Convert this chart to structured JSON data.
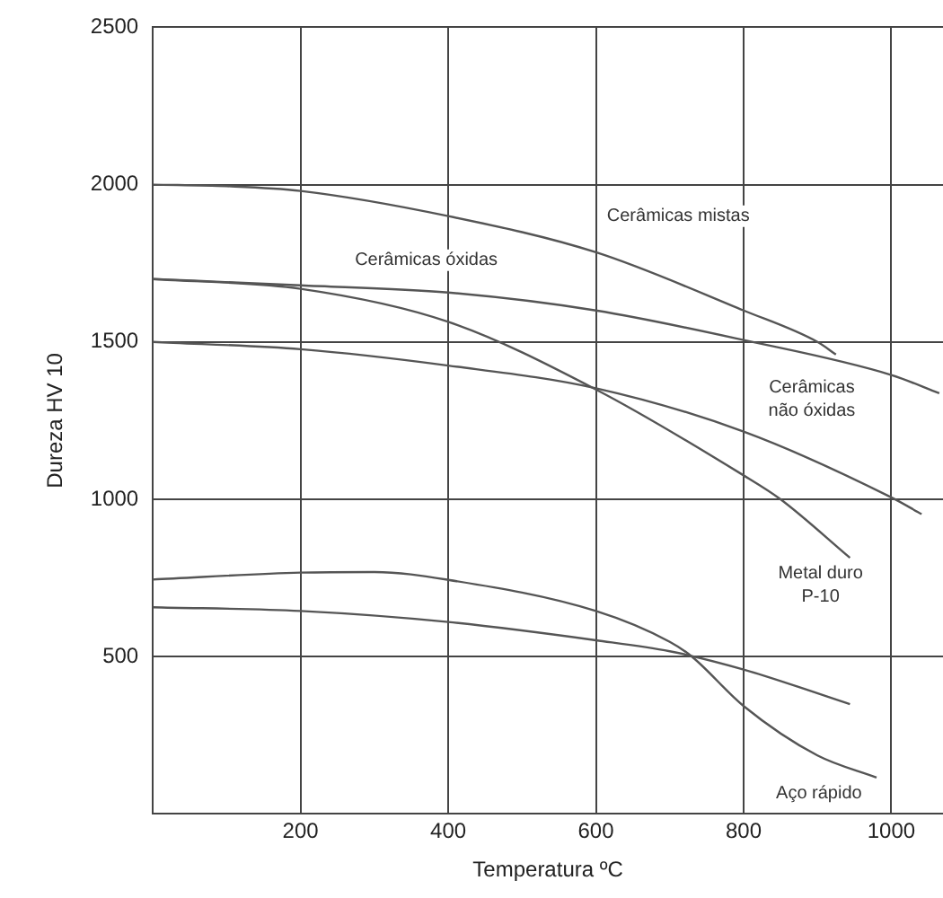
{
  "chart_data": {
    "type": "line",
    "xlabel": "Temperatura ºC",
    "ylabel": "Dureza HV 10",
    "xlim": [
      0,
      1070
    ],
    "xticks": [
      200,
      400,
      600,
      800,
      1000
    ],
    "ylim": [
      0,
      2500
    ],
    "yticks": [
      500,
      1000,
      1500,
      2000,
      2500
    ],
    "grid": true,
    "legend": false,
    "marker": "none",
    "line_style": "solid",
    "series": [
      {
        "color": "#555555",
        "x": [
          0,
          100,
          200,
          400,
          600,
          800,
          900,
          925
        ],
        "values": [
          2000,
          1995,
          1980,
          1900,
          1785,
          1600,
          1500,
          1460
        ]
      },
      {
        "color": "#555555",
        "x": [
          0,
          200,
          400,
          600,
          800,
          1000,
          1065
        ],
        "values": [
          1700,
          1680,
          1657,
          1600,
          1506,
          1395,
          1337
        ]
      },
      {
        "color": "#555555",
        "x": [
          0,
          200,
          400,
          600,
          800,
          850,
          944
        ],
        "values": [
          1700,
          1669,
          1564,
          1349,
          1076,
          1000,
          814
        ]
      },
      {
        "color": "#555555",
        "x": [
          0,
          200,
          400,
          600,
          800,
          1000,
          1041
        ],
        "values": [
          1500,
          1477,
          1425,
          1353,
          1215,
          1006,
          953
        ]
      },
      {
        "color": "#555555",
        "x": [
          0,
          200,
          300,
          400,
          600,
          700,
          730,
          800,
          900,
          980
        ],
        "values": [
          745,
          767,
          769,
          744,
          645,
          547,
          500,
          343,
          186,
          116
        ]
      },
      {
        "color": "#555555",
        "x": [
          0,
          200,
          400,
          600,
          700,
          800,
          944
        ],
        "values": [
          657,
          645,
          610,
          552,
          517,
          459,
          349
        ]
      }
    ],
    "annotations": [
      "Cerâmicas mistas",
      "Cerâmicas óxidas",
      "Cerâmicas\nnão óxidas",
      "Metal duro\nP-10",
      "Aço rápido"
    ]
  }
}
